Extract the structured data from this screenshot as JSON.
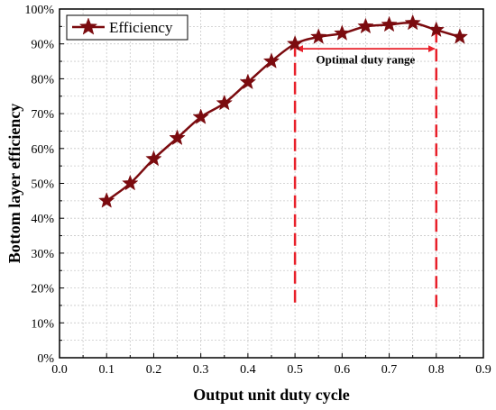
{
  "chart_data": {
    "type": "line",
    "title": "",
    "xlabel": "Output unit duty cycle",
    "ylabel": "Bottom layer efficiency",
    "xlim": [
      0.0,
      0.9
    ],
    "ylim": [
      0,
      100
    ],
    "xticks": [
      "0.0",
      "0.1",
      "0.2",
      "0.3",
      "0.4",
      "0.5",
      "0.6",
      "0.7",
      "0.8",
      "0.9"
    ],
    "yticks": [
      "0%",
      "10%",
      "20%",
      "30%",
      "40%",
      "50%",
      "60%",
      "70%",
      "80%",
      "90%",
      "100%"
    ],
    "grid": true,
    "legend_position": "top-left",
    "series": [
      {
        "name": "Efficiency",
        "color": "#7b0b0f",
        "marker": "star",
        "x": [
          0.1,
          0.15,
          0.2,
          0.25,
          0.3,
          0.35,
          0.4,
          0.45,
          0.5,
          0.55,
          0.6,
          0.65,
          0.7,
          0.75,
          0.8,
          0.85
        ],
        "y": [
          45,
          50,
          57,
          63,
          69,
          73,
          79,
          85,
          90,
          92,
          93,
          95,
          95.5,
          96,
          94,
          92
        ]
      }
    ],
    "annotation": {
      "text": "Optimal duty range",
      "x_start": 0.5,
      "x_end": 0.8,
      "color": "#e8202a"
    }
  }
}
